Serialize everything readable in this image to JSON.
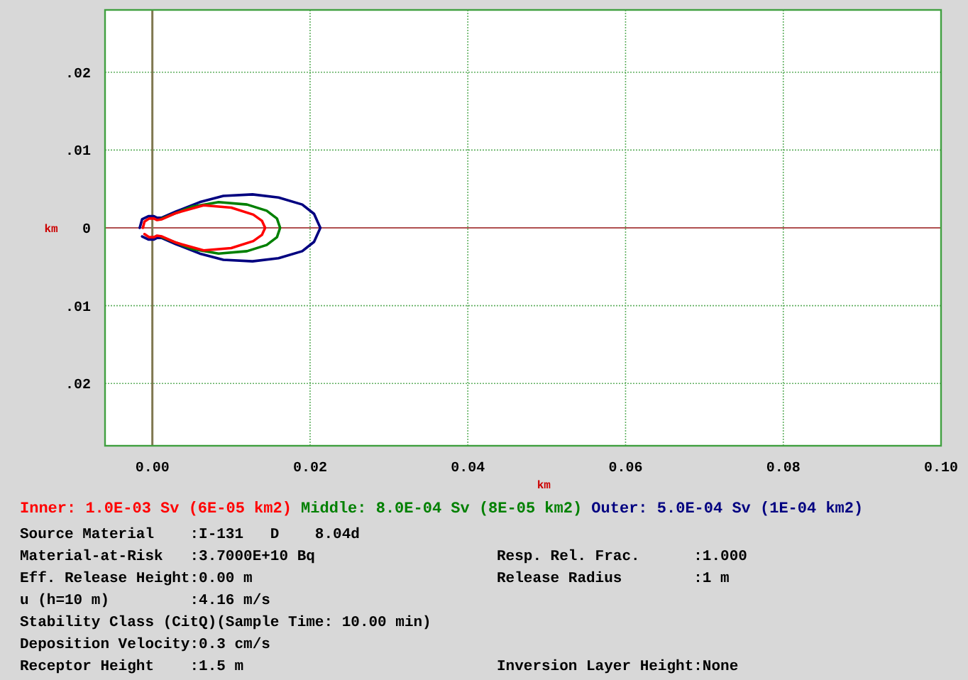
{
  "chart_data": {
    "type": "line",
    "xlabel": "km",
    "ylabel": "km",
    "xlim": [
      -0.006,
      0.1
    ],
    "xticks": [
      {
        "value": 0,
        "label": "0.00"
      },
      {
        "value": 0.02,
        "label": "0.02"
      },
      {
        "value": 0.04,
        "label": "0.04"
      },
      {
        "value": 0.06,
        "label": "0.06"
      },
      {
        "value": 0.08,
        "label": "0.08"
      },
      {
        "value": 0.1,
        "label": "0.10"
      }
    ],
    "ylim": [
      -0.028,
      0.028
    ],
    "yticks": [
      {
        "value": -0.02,
        "label": ".02"
      },
      {
        "value": -0.01,
        "label": ".01"
      },
      0,
      {
        "value": 0.01,
        "label": ".01"
      },
      {
        "value": 0.02,
        "label": ".02"
      }
    ],
    "grid": true,
    "legend": "bottom",
    "marker": "none",
    "line_style": "solid",
    "ref_lines": [
      {
        "axis": "y",
        "value": 0,
        "color": "#b05050"
      },
      {
        "axis": "x",
        "value": 0,
        "color": "#807850"
      }
    ],
    "series": [
      {
        "name": "Outer: 5.0E-04 Sv (1E-04 km2)",
        "color": "#000080",
        "x": [
          -0.0016,
          -0.0013,
          -0.0005,
          0.0002,
          0.0006,
          0.0012,
          0.003,
          0.006,
          0.009,
          0.0127,
          0.016,
          0.019,
          0.0205,
          0.0213,
          0.0205,
          0.019,
          0.016,
          0.0127,
          0.009,
          0.006,
          0.003,
          0.0012,
          0.0006,
          0.0002,
          -0.0005,
          -0.0013
        ],
        "values": [
          0,
          0.0011,
          0.0015,
          0.0015,
          0.0013,
          0.0013,
          0.0021,
          0.0033,
          0.0041,
          0.0043,
          0.0039,
          0.003,
          0.0018,
          0,
          -0.0018,
          -0.003,
          -0.0039,
          -0.0043,
          -0.0041,
          -0.0033,
          -0.0021,
          -0.0013,
          -0.0013,
          -0.0015,
          -0.0015,
          -0.0011
        ]
      },
      {
        "name": "Middle: 8.0E-04 Sv (8E-05 km2)",
        "color": "#008000",
        "x": [
          0.0012,
          0.003,
          0.005,
          0.0084,
          0.012,
          0.0145,
          0.0158,
          0.0162,
          0.0158,
          0.0145,
          0.012,
          0.0084,
          0.005,
          0.003,
          0.0012
        ],
        "values": [
          0.0012,
          0.0019,
          0.0027,
          0.0033,
          0.003,
          0.0022,
          0.0012,
          0,
          -0.0012,
          -0.0022,
          -0.003,
          -0.0033,
          -0.0027,
          -0.0019,
          -0.0012
        ]
      },
      {
        "name": "Inner: 1.0E-03 Sv (6E-05 km2)",
        "color": "#ff0000",
        "x": [
          -0.0012,
          -0.001,
          -0.0004,
          0.0002,
          0.0006,
          0.0012,
          0.003,
          0.0065,
          0.01,
          0.0128,
          0.0139,
          0.0143,
          0.0139,
          0.0128,
          0.01,
          0.0065,
          0.003,
          0.0012,
          0.0006,
          0.0002,
          -0.0004,
          -0.001
        ],
        "values": [
          0,
          0.0008,
          0.0012,
          0.0012,
          0.001,
          0.0011,
          0.0019,
          0.0029,
          0.0026,
          0.0017,
          0.0009,
          0,
          -0.0009,
          -0.0017,
          -0.0026,
          -0.0029,
          -0.0019,
          -0.0011,
          -0.001,
          -0.0012,
          -0.0012,
          -0.0008
        ]
      }
    ],
    "annotations": [
      "Source Material    :I-131   D    8.04d",
      "Material-at-Risk   :3.7000E+10 Bq",
      "Resp. Rel. Frac.      :1.000",
      "Eff. Release Height:0.00 m",
      "Release Radius        :1 m",
      "u (h=10 m)         :4.16 m/s",
      "Stability Class (CitQ)(Sample Time: 10.00 min)",
      "Deposition Velocity:0.3 cm/s",
      "Receptor Height    :1.5 m",
      "Inversion Layer Height:None"
    ]
  }
}
